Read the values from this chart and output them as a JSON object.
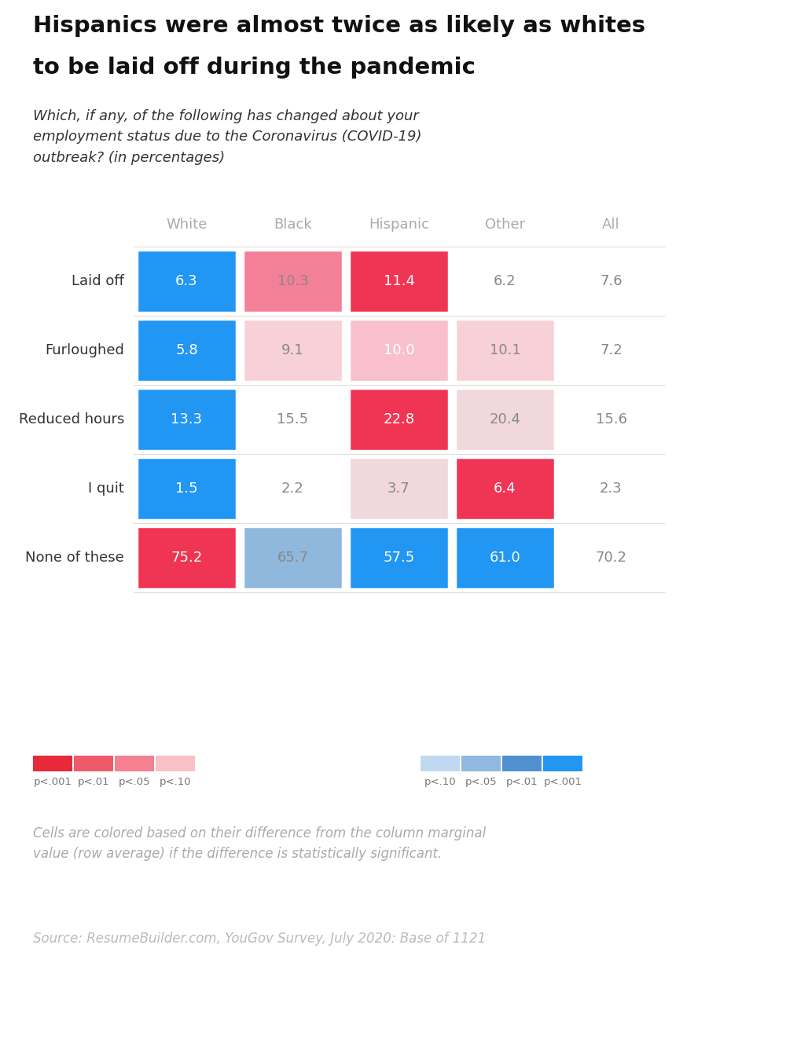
{
  "title_line1": "Hispanics were almost twice as likely as whites",
  "title_line2": "to be laid off during the pandemic",
  "subtitle": "Which, if any, of the following has changed about your\nemployment status due to the Coronavirus (COVID-19)\noutbreak? (in percentages)",
  "col_headers": [
    "White",
    "Black",
    "Hispanic",
    "Other",
    "All"
  ],
  "row_labels": [
    "Laid off",
    "Furloughed",
    "Reduced hours",
    "I quit",
    "None of these"
  ],
  "values": [
    [
      6.3,
      10.3,
      11.4,
      6.2,
      7.6
    ],
    [
      5.8,
      9.1,
      10.0,
      10.1,
      7.2
    ],
    [
      13.3,
      15.5,
      22.8,
      20.4,
      15.6
    ],
    [
      1.5,
      2.2,
      3.7,
      6.4,
      2.3
    ],
    [
      75.2,
      65.7,
      57.5,
      61.0,
      70.2
    ]
  ],
  "cell_colors": [
    [
      "#2196F3",
      "#F48098",
      "#F03554",
      "none",
      "none"
    ],
    [
      "#2196F3",
      "#F8D0D8",
      "#F8C0CC",
      "#F8D0D8",
      "none"
    ],
    [
      "#2196F3",
      "none",
      "#F03554",
      "#F0D8DC",
      "none"
    ],
    [
      "#2196F3",
      "none",
      "#F0D8DC",
      "#F03554",
      "none"
    ],
    [
      "#F03554",
      "#90B8DC",
      "#2196F3",
      "#2196F3",
      "none"
    ]
  ],
  "text_colors": [
    [
      "white",
      "#888888",
      "white",
      "#888888",
      "#888888"
    ],
    [
      "white",
      "#888888",
      "white",
      "#888888",
      "#888888"
    ],
    [
      "white",
      "#888888",
      "white",
      "#888888",
      "#888888"
    ],
    [
      "white",
      "#888888",
      "#888888",
      "white",
      "#888888"
    ],
    [
      "white",
      "#888888",
      "white",
      "white",
      "#888888"
    ]
  ],
  "footnote": "Cells are colored based on their difference from the column marginal\nvalue (row average) if the difference is statistically significant.",
  "source": "Source: ResumeBuilder.com, YouGov Survey, July 2020: Base of 1121",
  "bg_color": "#FFFFFF",
  "legend_red_labels": [
    "p<.001",
    "p<.01",
    "p<.05",
    "p<.10"
  ],
  "legend_blue_labels": [
    "p<.10",
    "p<.05",
    "p<.01",
    "p<.001"
  ],
  "red_colors": [
    "#E8293A",
    "#EF5A6B",
    "#F48090",
    "#F9C0C8"
  ],
  "blue_colors": [
    "#C0D8F0",
    "#90B8E0",
    "#5090D0",
    "#2196F3"
  ]
}
